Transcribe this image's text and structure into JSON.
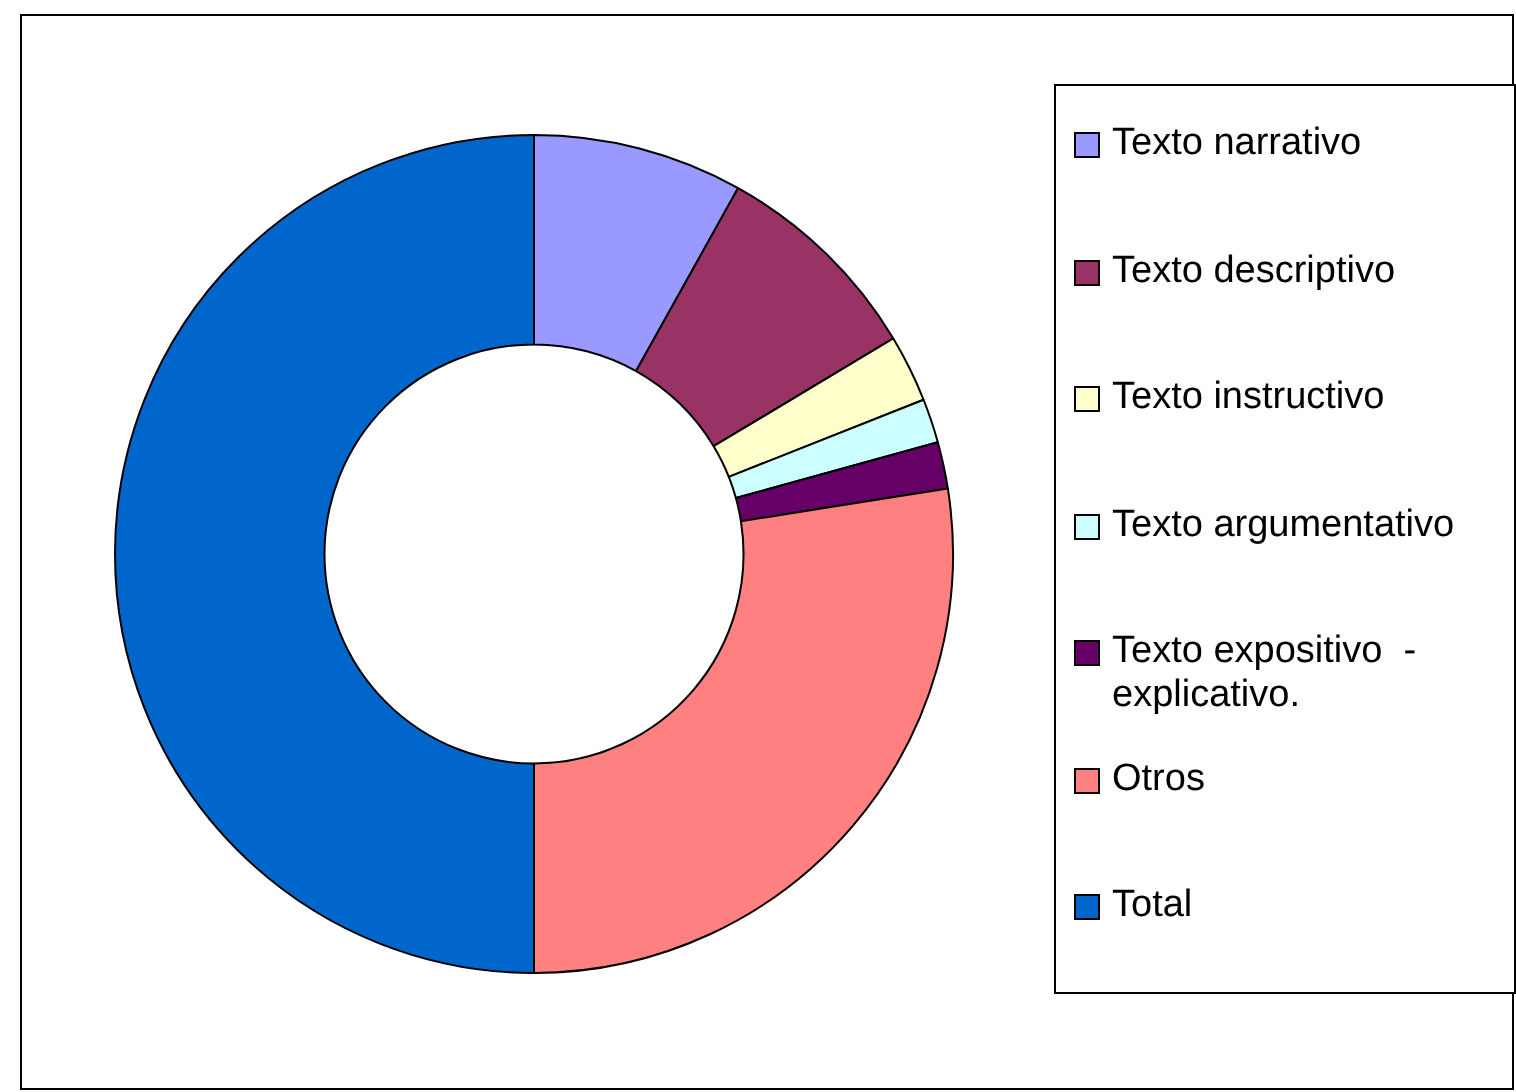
{
  "chart_data": {
    "type": "donut",
    "categories": [
      "Texto narrativo",
      "Texto descriptivo",
      "Texto instructivo",
      "Texto argumentativo",
      "Texto expositivo  - explicativo.",
      "Otros",
      "Total"
    ],
    "values": [
      8.1,
      8.3,
      2.6,
      1.7,
      1.8,
      27.5,
      50
    ],
    "colors": [
      "#9999ff",
      "#993366",
      "#ffffcc",
      "#ccffff",
      "#660066",
      "#ff8080",
      "#0066cc"
    ],
    "legend": "right"
  }
}
